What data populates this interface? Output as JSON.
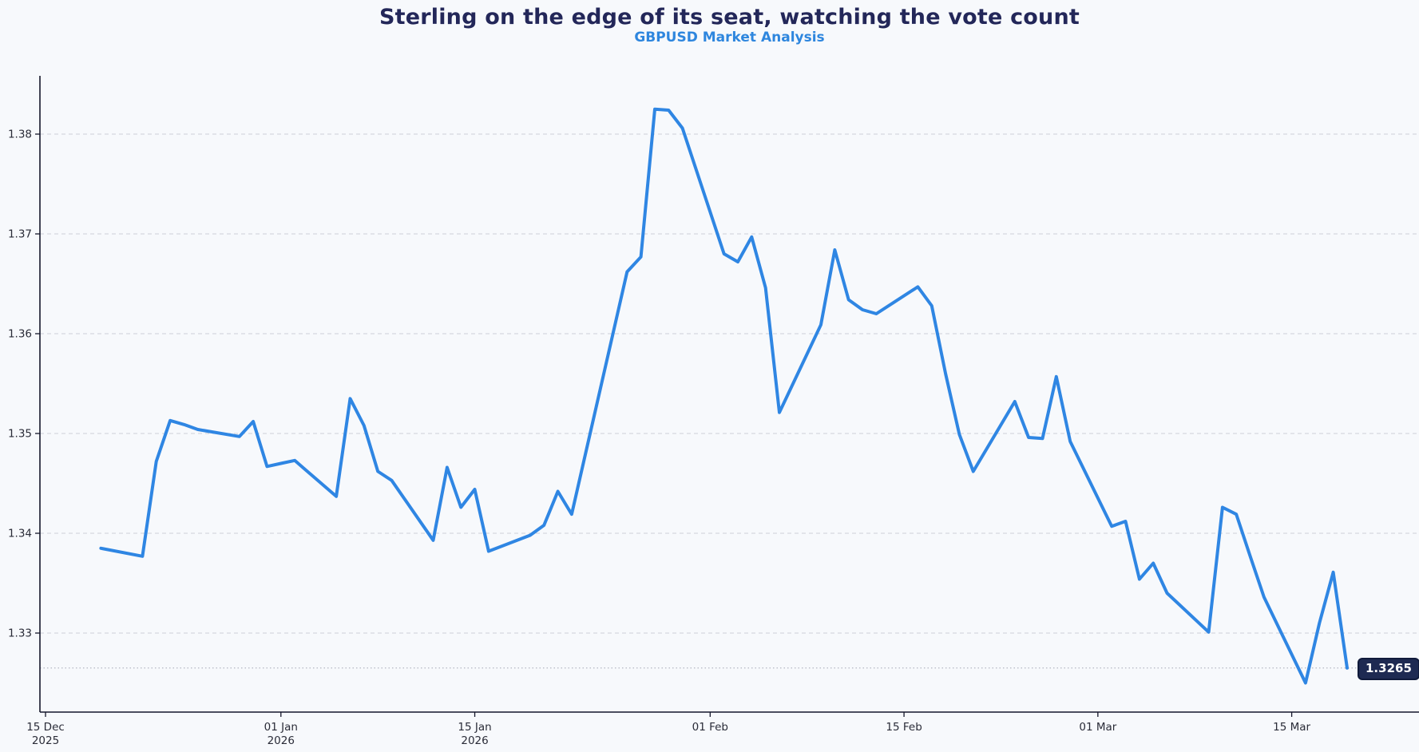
{
  "header": {
    "title": "Sterling on the edge of its seat, watching the vote count",
    "subtitle": "GBPUSD Market Analysis"
  },
  "colors": {
    "background": "#f7f9fc",
    "title": "#232759",
    "subtitle": "#2E86DE",
    "price_line": "#2F86E3",
    "gridline": "#cdd0d8",
    "last_price_line": "#b4b7c2",
    "axis": "#14162B",
    "tick_label": "#2a2c38",
    "badge_background": "#1E2A52",
    "badge_border": "#101A3A",
    "badge_text": "#ffffff"
  },
  "chart_data": {
    "type": "line",
    "title": "Sterling on the edge of its seat, watching the vote count",
    "subtitle": "GBPUSD Market Analysis",
    "xlabel": "",
    "ylabel": "",
    "ylim": [
      1.3221,
      1.3858
    ],
    "xlim_dates": [
      "2025-12-15",
      "2026-03-20"
    ],
    "grid": "horizontal-dashed",
    "legend_position": "none",
    "yticks": [
      {
        "value": 1.33,
        "label": "1.33"
      },
      {
        "value": 1.34,
        "label": "1.34"
      },
      {
        "value": 1.35,
        "label": "1.35"
      },
      {
        "value": 1.36,
        "label": "1.36"
      },
      {
        "value": 1.37,
        "label": "1.37"
      },
      {
        "value": 1.38,
        "label": "1.38"
      }
    ],
    "xticks": [
      {
        "date": "2025-12-15",
        "label": "15 Dec",
        "sublabel": "2025"
      },
      {
        "date": "2026-01-01",
        "label": "01 Jan",
        "sublabel": "2026"
      },
      {
        "date": "2026-01-15",
        "label": "15 Jan",
        "sublabel": "2026"
      },
      {
        "date": "2026-02-01",
        "label": "01 Feb",
        "sublabel": ""
      },
      {
        "date": "2026-02-15",
        "label": "15 Feb",
        "sublabel": ""
      },
      {
        "date": "2026-03-01",
        "label": "01 Mar",
        "sublabel": ""
      },
      {
        "date": "2026-03-15",
        "label": "15 Mar",
        "sublabel": ""
      }
    ],
    "series": [
      {
        "name": "GBPUSD",
        "dates": [
          "2025-12-19",
          "2025-12-22",
          "2025-12-23",
          "2025-12-24",
          "2025-12-25",
          "2025-12-26",
          "2025-12-29",
          "2025-12-30",
          "2025-12-31",
          "2026-01-01",
          "2026-01-02",
          "2026-01-05",
          "2026-01-06",
          "2026-01-07",
          "2026-01-08",
          "2026-01-09",
          "2026-01-12",
          "2026-01-13",
          "2026-01-14",
          "2026-01-15",
          "2026-01-16",
          "2026-01-19",
          "2026-01-20",
          "2026-01-21",
          "2026-01-22",
          "2026-01-23",
          "2026-01-26",
          "2026-01-27",
          "2026-01-28",
          "2026-01-29",
          "2026-01-30",
          "2026-02-02",
          "2026-02-03",
          "2026-02-04",
          "2026-02-05",
          "2026-02-06",
          "2026-02-09",
          "2026-02-10",
          "2026-02-11",
          "2026-02-12",
          "2026-02-13",
          "2026-02-16",
          "2026-02-17",
          "2026-02-18",
          "2026-02-19",
          "2026-02-20",
          "2026-02-23",
          "2026-02-24",
          "2026-02-25",
          "2026-02-26",
          "2026-02-27",
          "2026-03-02",
          "2026-03-03",
          "2026-03-04",
          "2026-03-05",
          "2026-03-06",
          "2026-03-09",
          "2026-03-10",
          "2026-03-11",
          "2026-03-12",
          "2026-03-13",
          "2026-03-16",
          "2026-03-17",
          "2026-03-18",
          "2026-03-19"
        ],
        "prices": [
          1.3385,
          1.3377,
          1.3472,
          1.3513,
          1.3509,
          1.3504,
          1.3497,
          1.3512,
          1.3467,
          1.347,
          1.3473,
          1.3437,
          1.3535,
          1.3508,
          1.3462,
          1.3453,
          1.3393,
          1.3466,
          1.3426,
          1.3444,
          1.3382,
          1.3398,
          1.3408,
          1.3442,
          1.3419,
          1.348,
          1.3662,
          1.3677,
          1.3825,
          1.3824,
          1.3806,
          1.368,
          1.3672,
          1.3697,
          1.3646,
          1.3521,
          1.3609,
          1.3684,
          1.3634,
          1.3624,
          1.362,
          1.3647,
          1.3628,
          1.356,
          1.3499,
          1.3462,
          1.3532,
          1.3496,
          1.3495,
          1.3557,
          1.3492,
          1.3407,
          1.3412,
          1.3354,
          1.337,
          1.334,
          1.3301,
          1.3426,
          1.3419,
          1.3377,
          1.3336,
          1.325,
          1.331,
          1.3361,
          1.3265
        ]
      }
    ],
    "last_price": 1.3265,
    "last_price_label": "1.3265"
  }
}
